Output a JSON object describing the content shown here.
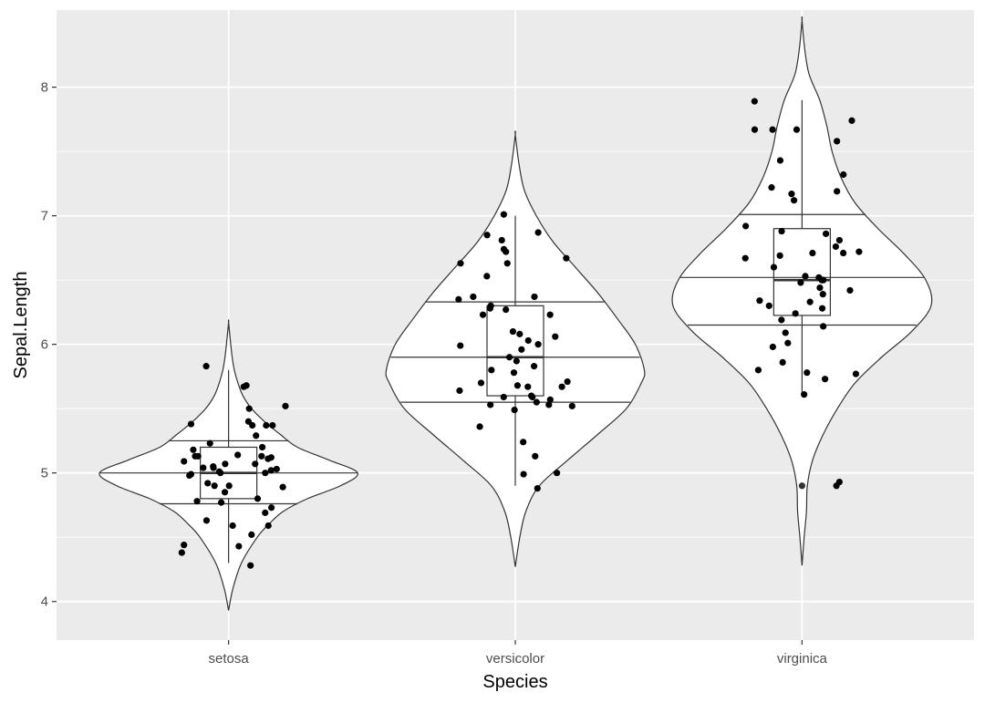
{
  "chart_data": {
    "type": "violin",
    "xlabel": "Species",
    "ylabel": "Sepal.Length",
    "categories": [
      "setosa",
      "versicolor",
      "virginica"
    ],
    "ylim": [
      3.7,
      8.6
    ],
    "yticks": [
      4,
      5,
      6,
      7,
      8
    ],
    "grid": true,
    "legend": "none",
    "colors": {
      "panel": "#ebebeb",
      "grid": "#ffffff",
      "violin_fill": "#ffffff",
      "outline": "#333333",
      "point": "#000000"
    },
    "violins": [
      {
        "category": "setosa",
        "range": [
          3.93,
          6.17
        ],
        "quantiles": [
          4.76,
          5.0,
          5.25
        ],
        "density": [
          [
            3.93,
            0
          ],
          [
            4.1,
            0.03
          ],
          [
            4.3,
            0.09
          ],
          [
            4.5,
            0.2
          ],
          [
            4.6,
            0.28
          ],
          [
            4.7,
            0.38
          ],
          [
            4.8,
            0.55
          ],
          [
            4.9,
            0.78
          ],
          [
            5.0,
            0.9
          ],
          [
            5.1,
            0.7
          ],
          [
            5.2,
            0.48
          ],
          [
            5.3,
            0.36
          ],
          [
            5.4,
            0.25
          ],
          [
            5.5,
            0.16
          ],
          [
            5.6,
            0.1
          ],
          [
            5.7,
            0.065
          ],
          [
            5.8,
            0.04
          ],
          [
            5.9,
            0.025
          ],
          [
            6.0,
            0.015
          ],
          [
            6.17,
            0
          ]
        ]
      },
      {
        "category": "versicolor",
        "range": [
          4.27,
          7.63
        ],
        "quantiles": [
          5.55,
          5.9,
          6.33
        ],
        "density": [
          [
            4.27,
            0
          ],
          [
            4.5,
            0.03
          ],
          [
            4.7,
            0.07
          ],
          [
            4.9,
            0.16
          ],
          [
            5.1,
            0.35
          ],
          [
            5.3,
            0.55
          ],
          [
            5.5,
            0.74
          ],
          [
            5.7,
            0.84
          ],
          [
            5.8,
            0.86
          ],
          [
            6.0,
            0.8
          ],
          [
            6.2,
            0.68
          ],
          [
            6.4,
            0.55
          ],
          [
            6.6,
            0.4
          ],
          [
            6.8,
            0.25
          ],
          [
            7.0,
            0.14
          ],
          [
            7.2,
            0.06
          ],
          [
            7.4,
            0.025
          ],
          [
            7.63,
            0
          ]
        ]
      },
      {
        "category": "virginica",
        "range": [
          4.28,
          8.52
        ],
        "quantiles": [
          6.15,
          6.52,
          7.01
        ],
        "density": [
          [
            4.28,
            0
          ],
          [
            4.5,
            0.012
          ],
          [
            4.7,
            0.025
          ],
          [
            4.9,
            0.03
          ],
          [
            5.1,
            0.06
          ],
          [
            5.3,
            0.12
          ],
          [
            5.5,
            0.2
          ],
          [
            5.7,
            0.3
          ],
          [
            5.9,
            0.45
          ],
          [
            6.1,
            0.62
          ],
          [
            6.3,
            0.73
          ],
          [
            6.5,
            0.7
          ],
          [
            6.7,
            0.58
          ],
          [
            6.9,
            0.43
          ],
          [
            7.1,
            0.3
          ],
          [
            7.3,
            0.22
          ],
          [
            7.5,
            0.17
          ],
          [
            7.7,
            0.14
          ],
          [
            7.9,
            0.1
          ],
          [
            8.1,
            0.04
          ],
          [
            8.3,
            0.015
          ],
          [
            8.52,
            0
          ]
        ]
      }
    ],
    "boxplots": [
      {
        "category": "setosa",
        "min": 4.3,
        "q1": 4.8,
        "median": 5.0,
        "q3": 5.2,
        "max": 5.8
      },
      {
        "category": "versicolor",
        "min": 4.9,
        "q1": 5.6,
        "median": 5.9,
        "q3": 6.3,
        "max": 7.0
      },
      {
        "category": "virginica",
        "min": 5.6,
        "q1": 6.225,
        "median": 6.5,
        "q3": 6.9,
        "max": 7.9,
        "outliers": [
          4.9
        ]
      }
    ],
    "points": [
      {
        "category": "setosa",
        "values": [
          5.68,
          5.83,
          5.67,
          5.52,
          5.5,
          5.4,
          5.38,
          5.37,
          5.37,
          5.37,
          5.29,
          5.23,
          5.2,
          5.18,
          5.14,
          5.13,
          5.13,
          5.13,
          5.12,
          5.11,
          5.09,
          5.07,
          5.07,
          5.05,
          5.04,
          5.04,
          5.03,
          5.02,
          5.01,
          5.0,
          5.0,
          4.99,
          4.98,
          4.92,
          4.9,
          4.9,
          4.89,
          4.85,
          4.8,
          4.78,
          4.77,
          4.73,
          4.69,
          4.63,
          4.59,
          4.59,
          4.52,
          4.44,
          4.43,
          4.38,
          4.28
        ]
      },
      {
        "category": "versicolor",
        "values": [
          7.01,
          6.87,
          6.85,
          6.81,
          6.74,
          6.72,
          6.67,
          6.63,
          6.63,
          6.53,
          6.37,
          6.37,
          6.35,
          6.3,
          6.28,
          6.27,
          6.23,
          6.23,
          6.1,
          6.08,
          6.06,
          6.03,
          6.0,
          5.99,
          5.96,
          5.9,
          5.87,
          5.83,
          5.8,
          5.78,
          5.71,
          5.7,
          5.68,
          5.67,
          5.67,
          5.64,
          5.6,
          5.59,
          5.59,
          5.57,
          5.55,
          5.53,
          5.53,
          5.52,
          5.49,
          5.36,
          5.24,
          5.13,
          5.0,
          4.99,
          4.88
        ]
      },
      {
        "category": "virginica",
        "values": [
          7.89,
          7.74,
          7.67,
          7.67,
          7.67,
          7.58,
          7.43,
          7.32,
          7.22,
          7.19,
          7.17,
          7.12,
          6.92,
          6.88,
          6.86,
          6.81,
          6.76,
          6.72,
          6.71,
          6.71,
          6.69,
          6.67,
          6.6,
          6.53,
          6.52,
          6.5,
          6.5,
          6.48,
          6.44,
          6.42,
          6.39,
          6.34,
          6.33,
          6.3,
          6.28,
          6.24,
          6.19,
          6.14,
          6.09,
          6.01,
          5.98,
          5.86,
          5.8,
          5.78,
          5.77,
          5.73,
          5.61,
          4.93,
          4.9
        ]
      }
    ]
  }
}
